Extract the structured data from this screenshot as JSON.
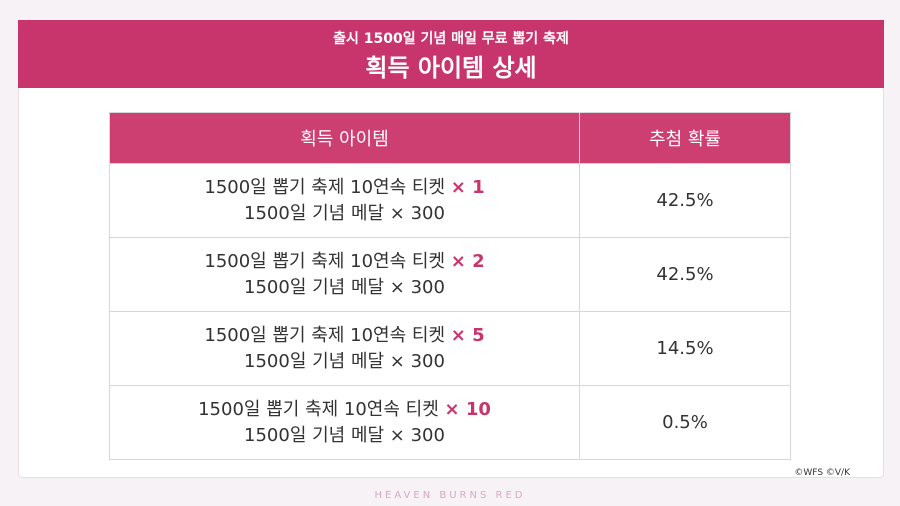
{
  "header": {
    "subtitle": "출시 1500일 기념 매일 무료 뽑기 축제",
    "title": "획득 아이템 상세"
  },
  "table": {
    "headers": [
      "획득 아이템",
      "추첨 확률"
    ],
    "rows": [
      {
        "item": "1500일 뽑기 축제 10연속 티켓",
        "multiplier": "× 1",
        "medal": "1500일 기념 메달 × 300",
        "probability": "42.5%"
      },
      {
        "item": "1500일 뽑기 축제 10연속 티켓",
        "multiplier": "× 2",
        "medal": "1500일 기념 메달 × 300",
        "probability": "42.5%"
      },
      {
        "item": "1500일 뽑기 축제 10연속 티켓",
        "multiplier": "× 5",
        "medal": "1500일 기념 메달 × 300",
        "probability": "14.5%"
      },
      {
        "item": "1500일 뽑기 축제 10연속 티켓",
        "multiplier": "× 10",
        "medal": "1500일 기념 메달 × 300",
        "probability": "0.5%"
      }
    ]
  },
  "footer": {
    "copyright": "©WFS ©V/K",
    "logo": "HEAVEN BURNS RED"
  }
}
